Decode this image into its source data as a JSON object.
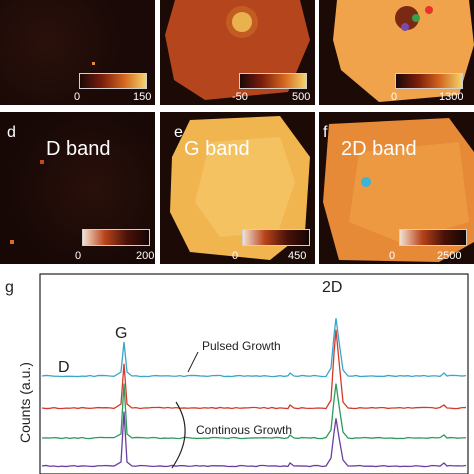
{
  "panels": [
    {
      "letter": "",
      "label": "",
      "cbar": [
        "0",
        "150"
      ]
    },
    {
      "letter": "",
      "label": "",
      "cbar": [
        "-50",
        "500"
      ]
    },
    {
      "letter": "",
      "label": "",
      "cbar": [
        "0",
        "1300"
      ]
    },
    {
      "letter": "d",
      "label": "D band",
      "cbar": [
        "0",
        "200"
      ]
    },
    {
      "letter": "e",
      "label": "G band",
      "cbar": [
        "0",
        "450"
      ]
    },
    {
      "letter": "f",
      "label": "2D band",
      "cbar": [
        "0",
        "2500"
      ]
    }
  ],
  "spectra": {
    "panel_letter": "g",
    "ylabel": "Counts (a.u.)",
    "peak_labels": {
      "D": "D",
      "G": "G",
      "2D": "2D"
    },
    "annotations": {
      "pulsed": "Pulsed Growth",
      "continuous": "Continous Growth"
    }
  },
  "chart_data": {
    "type": "line",
    "title": "",
    "xlabel": "",
    "ylabel": "Counts (a.u.)",
    "series": [
      {
        "color": "#3aa6c9",
        "values": [
          0.0,
          0.02,
          1.0,
          0.03,
          0.02,
          0.05,
          1.7,
          0.04,
          0.02
        ]
      },
      {
        "color": "#d33a2c",
        "values": [
          0.0,
          0.02,
          1.3,
          0.03,
          0.02,
          0.06,
          2.3,
          0.04,
          0.02
        ]
      },
      {
        "color": "#2f9a5a",
        "values": [
          0.0,
          0.02,
          1.6,
          0.03,
          0.02,
          0.05,
          1.6,
          0.04,
          0.02
        ]
      },
      {
        "color": "#6b3fa0",
        "values": [
          0.0,
          0.02,
          1.6,
          0.03,
          0.02,
          0.05,
          1.4,
          0.04,
          0.02
        ]
      }
    ],
    "peaks": [
      "D",
      "G",
      "2D"
    ],
    "grid": false,
    "legend": "none"
  },
  "colors": {
    "map_dark": "#1a0c08",
    "map_mid": "#b8431b",
    "map_bright": "#f6c258",
    "marker_red": "#e8322a",
    "marker_green": "#36a04a",
    "marker_purple": "#7a4aa8",
    "marker_cyan": "#3cb4d8"
  }
}
